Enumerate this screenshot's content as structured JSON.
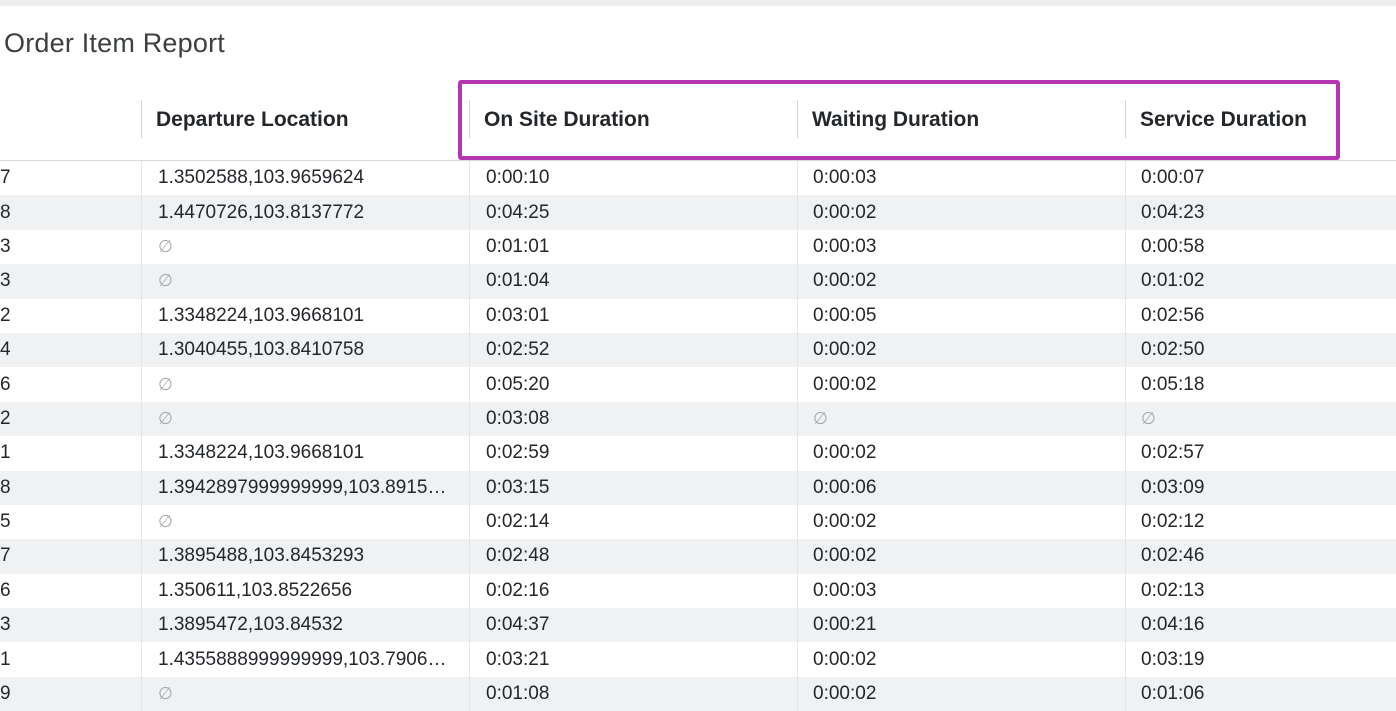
{
  "report": {
    "title": "Order Item Report"
  },
  "table": {
    "headers": {
      "col0": "",
      "departure_location": "Departure Location",
      "on_site_duration": "On Site Duration",
      "waiting_duration": "Waiting Duration",
      "service_duration": "Service Duration"
    },
    "null_symbol": "∅",
    "rows": [
      {
        "c0": "7",
        "departure": "1.3502588,103.9659624",
        "on_site": "0:00:10",
        "waiting": "0:00:03",
        "service": "0:00:07"
      },
      {
        "c0": "8",
        "departure": "1.4470726,103.8137772",
        "on_site": "0:04:25",
        "waiting": "0:00:02",
        "service": "0:04:23"
      },
      {
        "c0": "3",
        "departure": null,
        "on_site": "0:01:01",
        "waiting": "0:00:03",
        "service": "0:00:58"
      },
      {
        "c0": "3",
        "departure": null,
        "on_site": "0:01:04",
        "waiting": "0:00:02",
        "service": "0:01:02"
      },
      {
        "c0": "2",
        "departure": "1.3348224,103.9668101",
        "on_site": "0:03:01",
        "waiting": "0:00:05",
        "service": "0:02:56"
      },
      {
        "c0": "4",
        "departure": "1.3040455,103.8410758",
        "on_site": "0:02:52",
        "waiting": "0:00:02",
        "service": "0:02:50"
      },
      {
        "c0": "6",
        "departure": null,
        "on_site": "0:05:20",
        "waiting": "0:00:02",
        "service": "0:05:18"
      },
      {
        "c0": "2",
        "departure": null,
        "on_site": "0:03:08",
        "waiting": null,
        "service": null
      },
      {
        "c0": "1",
        "departure": "1.3348224,103.9668101",
        "on_site": "0:02:59",
        "waiting": "0:00:02",
        "service": "0:02:57"
      },
      {
        "c0": "8",
        "departure": "1.3942897999999999,103.8915…",
        "on_site": "0:03:15",
        "waiting": "0:00:06",
        "service": "0:03:09"
      },
      {
        "c0": "5",
        "departure": null,
        "on_site": "0:02:14",
        "waiting": "0:00:02",
        "service": "0:02:12"
      },
      {
        "c0": "7",
        "departure": "1.3895488,103.8453293",
        "on_site": "0:02:48",
        "waiting": "0:00:02",
        "service": "0:02:46"
      },
      {
        "c0": "6",
        "departure": "1.350611,103.8522656",
        "on_site": "0:02:16",
        "waiting": "0:00:03",
        "service": "0:02:13"
      },
      {
        "c0": "3",
        "departure": "1.3895472,103.84532",
        "on_site": "0:04:37",
        "waiting": "0:00:21",
        "service": "0:04:16"
      },
      {
        "c0": "1",
        "departure": "1.4355888999999999,103.7906…",
        "on_site": "0:03:21",
        "waiting": "0:00:02",
        "service": "0:03:19"
      },
      {
        "c0": "9",
        "departure": null,
        "on_site": "0:01:08",
        "waiting": "0:00:02",
        "service": "0:01:06"
      }
    ]
  },
  "colors": {
    "highlight": "#b536b3",
    "alt_row": "#f0f1f2",
    "null_text": "#a3a7ab"
  }
}
